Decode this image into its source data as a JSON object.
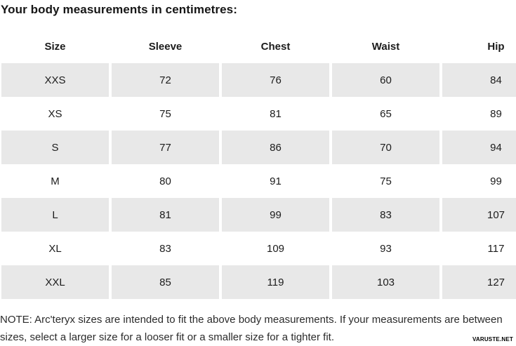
{
  "page": {
    "title": "Your body measurements in centimetres:",
    "note": "NOTE: Arc'teryx sizes are intended to fit the above body measurements. If your measurements are between sizes, select a larger size for a looser fit or a smaller size for a tighter fit.",
    "watermark": "VARUSTE.NET"
  },
  "table": {
    "headers": [
      "Size",
      "Sleeve",
      "Chest",
      "Waist",
      "Hip"
    ],
    "rows": [
      {
        "size": "XXS",
        "values": [
          72,
          76,
          60,
          84
        ],
        "shaded": true
      },
      {
        "size": "XS",
        "values": [
          75,
          81,
          65,
          89
        ],
        "shaded": false
      },
      {
        "size": "S",
        "values": [
          77,
          86,
          70,
          94
        ],
        "shaded": true
      },
      {
        "size": "M",
        "values": [
          80,
          91,
          75,
          99
        ],
        "shaded": false
      },
      {
        "size": "L",
        "values": [
          81,
          99,
          83,
          107
        ],
        "shaded": true
      },
      {
        "size": "XL",
        "values": [
          83,
          109,
          93,
          117
        ],
        "shaded": false
      },
      {
        "size": "XXL",
        "values": [
          85,
          119,
          103,
          127
        ],
        "shaded": true
      }
    ]
  },
  "colors": {
    "row_shade": "#e8e8e8",
    "text": "#1c1c1c",
    "note_text": "#2b2b2b"
  }
}
